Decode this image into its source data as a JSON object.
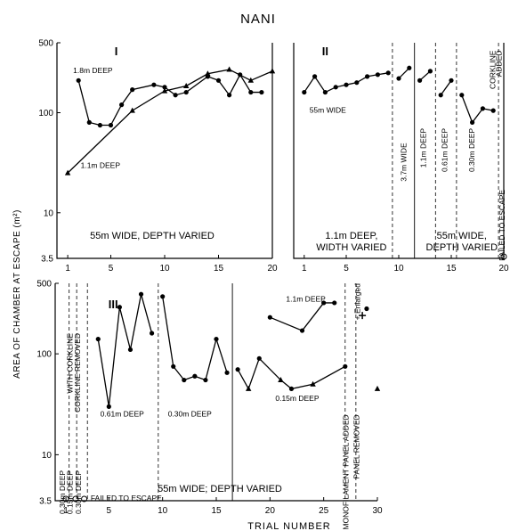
{
  "figure": {
    "title": "NANI",
    "ylabel": "AREA OF CHAMBER AT ESCAPE (m²)",
    "xlabel": "TRIAL NUMBER"
  },
  "chart_data": [
    {
      "id": "I",
      "type": "line",
      "panel_label": "I",
      "ytype": "log",
      "ylim": [
        3.5,
        500
      ],
      "xlim": [
        0,
        20
      ],
      "yticks": [
        3.5,
        10,
        100,
        500
      ],
      "ytick_labels": [
        "3.5",
        "10",
        "100",
        "500"
      ],
      "xticks": [
        1,
        5,
        10,
        15,
        20
      ],
      "xtick_labels": [
        "1",
        "5",
        "10",
        "15",
        "20"
      ],
      "caption": "55m WIDE, DEPTH VARIED",
      "series": [
        {
          "name": "1.8m DEEP",
          "marker": "circle",
          "x": [
            2,
            3,
            4,
            5,
            6,
            7,
            9,
            10,
            11,
            12,
            14,
            15,
            16,
            17,
            18,
            19
          ],
          "y": [
            210,
            80,
            75,
            75,
            120,
            170,
            190,
            180,
            150,
            160,
            230,
            210,
            150,
            240,
            160,
            160
          ]
        },
        {
          "name": "1.1m DEEP",
          "marker": "triangle",
          "x": [
            1,
            7,
            10,
            12,
            14,
            16,
            18,
            20
          ],
          "y": [
            25,
            105,
            165,
            185,
            245,
            270,
            210,
            260
          ]
        }
      ],
      "labels": [
        {
          "text": "1.8m DEEP",
          "x": 1.5,
          "y": 250
        },
        {
          "text": "1.1m DEEP",
          "x": 2.2,
          "y": 28
        }
      ],
      "vlines": []
    },
    {
      "id": "II",
      "type": "line",
      "panel_label": "II",
      "ytype": "log",
      "ylim": [
        3.5,
        500
      ],
      "xlim": [
        0,
        20
      ],
      "yticks": [],
      "ytick_labels": [],
      "xticks": [
        1,
        5,
        10,
        15,
        20
      ],
      "xtick_labels": [
        "1",
        "5",
        "10",
        "15",
        "20"
      ],
      "series": [
        {
          "name": "width varied",
          "marker": "circle",
          "x": [
            1,
            2,
            3,
            4,
            5,
            6,
            7,
            8,
            9
          ],
          "y": [
            160,
            230,
            160,
            180,
            190,
            200,
            230,
            240,
            250
          ]
        },
        {
          "name": "3.7m WIDE",
          "marker": "circle",
          "x": [
            10,
            11
          ],
          "y": [
            220,
            280
          ]
        },
        {
          "name": "1.1m DEEP",
          "marker": "circle",
          "x": [
            12,
            13
          ],
          "y": [
            210,
            260
          ]
        },
        {
          "name": "0.61m DEEP",
          "marker": "circle",
          "x": [
            14,
            15
          ],
          "y": [
            150,
            210
          ]
        },
        {
          "name": "0.30m DEEP",
          "marker": "circle",
          "x": [
            16,
            17,
            18,
            19
          ],
          "y": [
            150,
            80,
            110,
            105
          ]
        }
      ],
      "failed": [
        {
          "x": 20,
          "y": 3.5
        }
      ],
      "vlines": [
        {
          "x": 9.4,
          "style": "dash"
        },
        {
          "x": 11.5,
          "style": "solid"
        },
        {
          "x": 13.5,
          "style": "dash"
        },
        {
          "x": 15.5,
          "style": "dash"
        },
        {
          "x": 19.5,
          "style": "dash"
        }
      ],
      "labels": [
        {
          "text": "55m WIDE",
          "x": 1.5,
          "y": 100,
          "rot": 0
        },
        {
          "text": "3.7m WIDE",
          "x": 10.7,
          "y": 50,
          "rot": -90
        },
        {
          "text": "1.1m DEEP",
          "x": 12.6,
          "y": 70,
          "rot": -90
        },
        {
          "text": "0.61m DEEP",
          "x": 14.6,
          "y": 70,
          "rot": -90
        },
        {
          "text": "0.30m DEEP",
          "x": 17.2,
          "y": 70,
          "rot": -90
        },
        {
          "text": "CORKLINE",
          "x": 19.2,
          "y": 420,
          "rot": -90
        },
        {
          "text": "ADDED",
          "x": 19.8,
          "y": 420,
          "rot": -90
        },
        {
          "text": "FAILED TO ESCAPE",
          "x": 20.1,
          "y": 17,
          "rot": -90
        }
      ],
      "captions": [
        {
          "lines": [
            "1.1m DEEP,",
            "WIDTH VARIED"
          ],
          "x": 5.5
        },
        {
          "lines": [
            "55m WIDE,",
            "DEPTH VARIED"
          ],
          "x": 16.0
        }
      ]
    },
    {
      "id": "III",
      "type": "line",
      "panel_label": "III",
      "ytype": "log",
      "ylim": [
        3.5,
        500
      ],
      "xlim": [
        0,
        30
      ],
      "yticks": [
        3.5,
        10,
        100,
        500
      ],
      "ytick_labels": [
        "3.5",
        "10",
        "100",
        "500"
      ],
      "xticks": [
        1,
        5,
        10,
        15,
        20,
        25,
        30
      ],
      "xtick_labels": [
        "1",
        "5",
        "10",
        "15",
        "20",
        "25",
        "30"
      ],
      "caption": "55m WIDE; DEPTH VARIED",
      "series": [
        {
          "name": "0.61m DEEP",
          "marker": "circle",
          "x": [
            4,
            5,
            6,
            7,
            8,
            9
          ],
          "y": [
            140,
            30,
            290,
            110,
            390,
            160
          ]
        },
        {
          "name": "0.30m DEEP",
          "marker": "circle",
          "x": [
            10,
            11,
            12,
            13,
            14,
            15,
            16
          ],
          "y": [
            370,
            75,
            55,
            60,
            55,
            140,
            65
          ]
        },
        {
          "name": "0.15m DEEP",
          "marker": "mixed",
          "x": [
            17,
            18,
            19,
            21,
            22,
            24,
            27
          ],
          "y": [
            70,
            45,
            90,
            55,
            45,
            50,
            75
          ]
        },
        {
          "name": "1.1m DEEP",
          "marker": "circle",
          "x": [
            20,
            23,
            25,
            26
          ],
          "y": [
            230,
            170,
            320,
            320
          ]
        }
      ],
      "isolated": [
        {
          "x": 29,
          "y": 280,
          "marker": "circle"
        },
        {
          "x": 30,
          "y": 45,
          "marker": "triangle"
        },
        {
          "x": 28.6,
          "y": 240,
          "marker": "plus"
        }
      ],
      "failed": [
        {
          "x": 1,
          "y": 3.5
        },
        {
          "x": 1.9,
          "y": 3.5
        },
        {
          "x": 2.7,
          "y": 3.5
        }
      ],
      "vlines": [
        {
          "x": 1.3,
          "style": "dash"
        },
        {
          "x": 2.0,
          "style": "dash"
        },
        {
          "x": 3.0,
          "style": "dash"
        },
        {
          "x": 9.6,
          "style": "dash"
        },
        {
          "x": 16.5,
          "style": "solid"
        },
        {
          "x": 27.0,
          "style": "dash"
        },
        {
          "x": 28.0,
          "style": "dash"
        }
      ],
      "labels": [
        {
          "text": "1.1m DEEP",
          "x": 21.5,
          "y": 330,
          "rot": 0
        },
        {
          "text": "0.15m DEEP",
          "x": 20.5,
          "y": 34,
          "rot": 0
        },
        {
          "text": "0.61m DEEP",
          "x": 4.2,
          "y": 24,
          "rot": 0
        },
        {
          "text": "0.30m DEEP",
          "x": 10.5,
          "y": 24,
          "rot": 0
        },
        {
          "text": "FAILED TO ESCAPE",
          "x": 3.3,
          "y": 3.5,
          "rot": 0
        },
        {
          "text": "WITH CORKLINE",
          "x": 1.6,
          "y": 160,
          "rot": -90
        },
        {
          "text": "CORKLINE REMOVED",
          "x": 2.3,
          "y": 160,
          "rot": -90
        },
        {
          "text": "0.30m DEEP",
          "x": 0.9,
          "y": 7,
          "rot": -90
        },
        {
          "text": "0.15m DEEP",
          "x": 1.6,
          "y": 7,
          "rot": -90
        },
        {
          "text": "0.30m DEEP",
          "x": 2.4,
          "y": 7,
          "rot": -90
        },
        {
          "text": "MONOFILAMENT PANEL ADDED",
          "x": 27.3,
          "y": 25,
          "rot": -90
        },
        {
          "text": "PANEL REMOVED",
          "x": 28.3,
          "y": 25,
          "rot": -90
        },
        {
          "text": "+ Enlarged",
          "x": 28.4,
          "y": 500,
          "rot": -90
        }
      ]
    }
  ]
}
